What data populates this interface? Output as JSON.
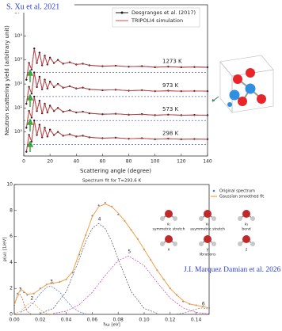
{
  "chart_data": [
    {
      "type": "line",
      "source": "S. Xu et al. 2021",
      "xlabel": "Scattering angle (degree)",
      "ylabel": "Neutron scattering yield (arbitrary unit)",
      "xlim": [
        0,
        140
      ],
      "xticks": [
        0,
        20,
        40,
        60,
        80,
        100,
        120,
        140
      ],
      "ylim": [
        0.1,
        200000
      ],
      "log_y": true,
      "yticks": [
        {
          "value": 1,
          "label": "10⁰"
        },
        {
          "value": 10,
          "label": "10¹"
        },
        {
          "value": 100,
          "label": "10²"
        },
        {
          "value": 1000,
          "label": "10³"
        },
        {
          "value": 10000,
          "label": "10⁴"
        },
        {
          "value": 100000,
          "label": "10⁵"
        }
      ],
      "x": [
        2,
        4,
        6,
        8,
        10,
        12,
        14,
        16,
        18,
        20,
        23,
        26,
        30,
        35,
        40,
        45,
        50,
        60,
        70,
        80,
        90,
        100,
        110,
        120,
        130,
        140
      ],
      "curve_labels": [
        "1273 K",
        "973 K",
        "573 K",
        "298 K"
      ],
      "baselines": [
        300,
        30,
        3,
        0.3
      ],
      "baseline_color": "#4a5fd0",
      "series": [
        {
          "name": "Desgranges et al. (2017)",
          "color": "#1a1a1a",
          "marker": true,
          "curves": [
            [
              150,
              750,
              400,
              3000,
              750,
              2000,
              600,
              1500,
              650,
              1250,
              750,
              1000,
              700,
              800,
              650,
              700,
              600,
              550,
              575,
              525,
              550,
              500,
              525,
              500,
              510,
              500
            ],
            [
              15,
              75,
              40,
              300,
              75,
              200,
              60,
              150,
              65,
              125,
              75,
              100,
              70,
              80,
              65,
              70,
              60,
              55,
              57.5,
              52.5,
              55,
              50,
              52.5,
              50,
              51,
              50
            ],
            [
              1.5,
              7.5,
              4,
              30,
              7.5,
              20,
              6,
              15,
              6.5,
              12.5,
              7.5,
              10,
              7,
              8,
              6.5,
              7,
              6,
              5.5,
              5.75,
              5.25,
              5.5,
              5,
              5.25,
              5,
              5.1,
              5
            ],
            [
              0.15,
              0.75,
              0.4,
              3,
              0.75,
              2,
              0.6,
              1.5,
              0.65,
              1.25,
              0.75,
              1,
              0.7,
              0.8,
              0.65,
              0.7,
              0.6,
              0.55,
              0.575,
              0.525,
              0.55,
              0.5,
              0.525,
              0.5,
              0.51,
              0.5
            ]
          ]
        },
        {
          "name": "TRIPOLI4 simulation",
          "color": "#e0474c",
          "marker": false,
          "curves": [
            [
              160,
              720,
              420,
              2800,
              760,
              1900,
              620,
              1450,
              660,
              1200,
              760,
              980,
              710,
              780,
              660,
              690,
              610,
              560,
              570,
              530,
              545,
              505,
              520,
              505,
              505,
              500
            ],
            [
              16,
              72,
              42,
              280,
              76,
              190,
              62,
              145,
              66,
              120,
              76,
              98,
              71,
              78,
              66,
              69,
              61,
              56,
              57,
              53,
              54.5,
              50.5,
              52,
              50.5,
              50.5,
              50
            ],
            [
              1.6,
              7.2,
              4.2,
              28,
              7.6,
              19,
              6.2,
              14.5,
              6.6,
              12,
              7.6,
              9.8,
              7.1,
              7.8,
              6.6,
              6.9,
              6.1,
              5.6,
              5.7,
              5.3,
              5.45,
              5.05,
              5.2,
              5.05,
              5.05,
              5
            ],
            [
              0.16,
              0.72,
              0.42,
              2.8,
              0.76,
              1.9,
              0.62,
              1.45,
              0.66,
              1.2,
              0.76,
              0.98,
              0.71,
              0.78,
              0.66,
              0.69,
              0.61,
              0.56,
              0.57,
              0.53,
              0.545,
              0.505,
              0.52,
              0.505,
              0.505,
              0.5
            ]
          ]
        }
      ]
    },
    {
      "type": "line",
      "title": "Spectrum fit for T=293.6 K",
      "source": "J.I. Marquez Damian et al. 2026",
      "xlabel": "ħω [eV]",
      "ylabel": "ρ(ω) [1/eV]",
      "xlim": [
        0,
        0.15
      ],
      "xticks": [
        {
          "value": 0,
          "label": "0.00"
        },
        0.02,
        0.04,
        0.06,
        0.08,
        {
          "value": 0.1,
          "label": "0.10"
        },
        0.12,
        0.14
      ],
      "ylim": [
        0,
        10
      ],
      "yticks": [
        0,
        2,
        4,
        6,
        8,
        10
      ],
      "x": [
        0,
        0.0025,
        0.005,
        0.0075,
        0.01,
        0.015,
        0.02,
        0.025,
        0.03,
        0.035,
        0.04,
        0.045,
        0.05,
        0.055,
        0.06,
        0.065,
        0.07,
        0.075,
        0.08,
        0.085,
        0.09,
        0.095,
        0.1,
        0.105,
        0.11,
        0.115,
        0.12,
        0.125,
        0.13,
        0.135,
        0.14,
        0.145,
        0.15
      ],
      "series": [
        {
          "name": "Original spectrum",
          "color": "#4a7fc1",
          "style": "dots",
          "values": [
            0.7,
            1.6,
            2.0,
            1.7,
            1.5,
            1.6,
            2.0,
            2.3,
            2.4,
            2.5,
            2.7,
            3.2,
            4.6,
            6.1,
            7.6,
            8.4,
            8.6,
            8.3,
            7.7,
            7.2,
            6.5,
            5.8,
            5.0,
            4.2,
            3.4,
            2.7,
            2.0,
            1.5,
            1.0,
            0.8,
            0.7,
            0.6,
            0.5
          ]
        },
        {
          "name": "Gaussian smoothed fit",
          "color": "#f5a040",
          "style": "line",
          "values": [
            0.7,
            1.5,
            1.95,
            1.75,
            1.55,
            1.6,
            1.95,
            2.3,
            2.4,
            2.5,
            2.7,
            3.3,
            4.7,
            6.1,
            7.5,
            8.3,
            8.5,
            8.3,
            7.8,
            7.2,
            6.5,
            5.8,
            5.0,
            4.2,
            3.4,
            2.7,
            2.0,
            1.5,
            1.05,
            0.8,
            0.7,
            0.6,
            0.5
          ]
        }
      ],
      "components": [
        {
          "name": "1",
          "color": "#e0463c",
          "x": [
            0,
            0.002,
            0.004,
            0.006,
            0.008,
            0.01,
            0.013
          ],
          "values": [
            0.66,
            1.28,
            1.6,
            1.28,
            0.66,
            0.22,
            0.02
          ]
        },
        {
          "name": "2",
          "color": "#f0a030",
          "x": [
            0,
            0.005,
            0.01,
            0.013,
            0.016,
            0.02,
            0.025,
            0.03
          ],
          "values": [
            0.03,
            0.25,
            0.75,
            0.9,
            0.75,
            0.34,
            0.05,
            0.01
          ]
        },
        {
          "name": "3",
          "color": "#4a6fd8",
          "x": [
            0.005,
            0.01,
            0.015,
            0.02,
            0.025,
            0.028,
            0.035,
            0.04,
            0.045,
            0.05,
            0.055
          ],
          "values": [
            0.16,
            0.44,
            0.94,
            1.6,
            2.1,
            2.2,
            1.72,
            1.07,
            0.52,
            0.2,
            0.06
          ]
        },
        {
          "name": "4",
          "color": "#555555",
          "x": [
            0.02,
            0.03,
            0.04,
            0.05,
            0.055,
            0.06,
            0.065,
            0.07,
            0.075,
            0.08,
            0.09,
            0.1,
            0.11
          ],
          "values": [
            0.08,
            0.46,
            1.75,
            4.25,
            5.61,
            6.62,
            7,
            6.62,
            5.61,
            4.25,
            1.75,
            0.46,
            0.08
          ]
        },
        {
          "name": "5",
          "color": "#d040b0",
          "x": [
            0.03,
            0.04,
            0.05,
            0.06,
            0.07,
            0.08,
            0.088,
            0.1,
            0.11,
            0.12,
            0.13,
            0.14,
            0.15
          ],
          "values": [
            0.07,
            0.25,
            0.74,
            1.69,
            3.0,
            4.15,
            4.5,
            3.76,
            2.46,
            1.25,
            0.5,
            0.15,
            0.04
          ]
        },
        {
          "name": "6",
          "color": "#777777",
          "x": [
            0.125,
            0.13,
            0.135,
            0.14,
            0.145,
            0.15
          ],
          "values": [
            0.02,
            0.09,
            0.23,
            0.41,
            0.5,
            0.41
          ]
        }
      ],
      "modes": [
        {
          "symbol": "ν₁",
          "label": "symmetric stretch"
        },
        {
          "symbol": "ν₃",
          "label": "asymmetric stretch"
        },
        {
          "symbol": "ν₂",
          "label": "bend"
        }
      ],
      "librations": {
        "axes": [
          "x",
          "y",
          "z"
        ],
        "label": "librations"
      }
    }
  ]
}
